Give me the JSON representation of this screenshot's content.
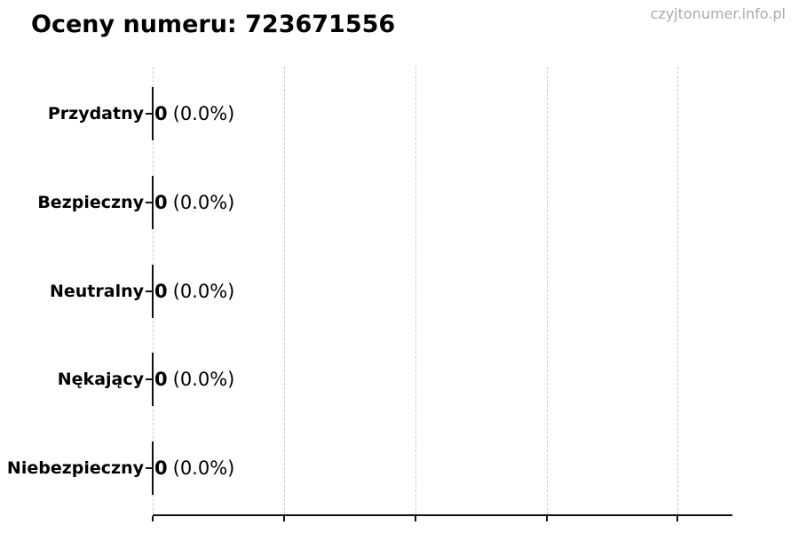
{
  "header": {
    "title": "Oceny numeru: 723671556",
    "watermark": "czyjtonumer.info.pl"
  },
  "chart_data": {
    "type": "bar",
    "orientation": "horizontal",
    "title": "Oceny numeru: 723671556",
    "categories": [
      "Przydatny",
      "Bezpieczny",
      "Neutralny",
      "Nękający",
      "Niebezpieczny"
    ],
    "values": [
      0,
      0,
      0,
      0,
      0
    ],
    "value_labels": [
      "0 (0.0%)",
      "0 (0.0%)",
      "0 (0.0%)",
      "0 (0.0%)",
      "0 (0.0%)"
    ],
    "rows": [
      {
        "label": "Przydatny",
        "value": "0",
        "percent": "(0.0%)"
      },
      {
        "label": "Bezpieczny",
        "value": "0",
        "percent": "(0.0%)"
      },
      {
        "label": "Neutralny",
        "value": "0",
        "percent": "(0.0%)"
      },
      {
        "label": "Nękający",
        "value": "0",
        "percent": "(0.0%)"
      },
      {
        "label": "Niebezpieczny",
        "value": "0",
        "percent": "(0.0%)"
      }
    ],
    "xlabel": "",
    "ylabel": "",
    "x_tick_labels": [],
    "n_x_ticks": 5,
    "grid": {
      "axis": "x",
      "style": "dashed",
      "on": true
    },
    "legend": "none",
    "colors": {
      "background": "#ffffff",
      "text": "#000000",
      "bar_edge": "#111111",
      "axis": "#111111",
      "gridline": "#c9c9c9",
      "watermark": "#aaaaaa"
    }
  }
}
